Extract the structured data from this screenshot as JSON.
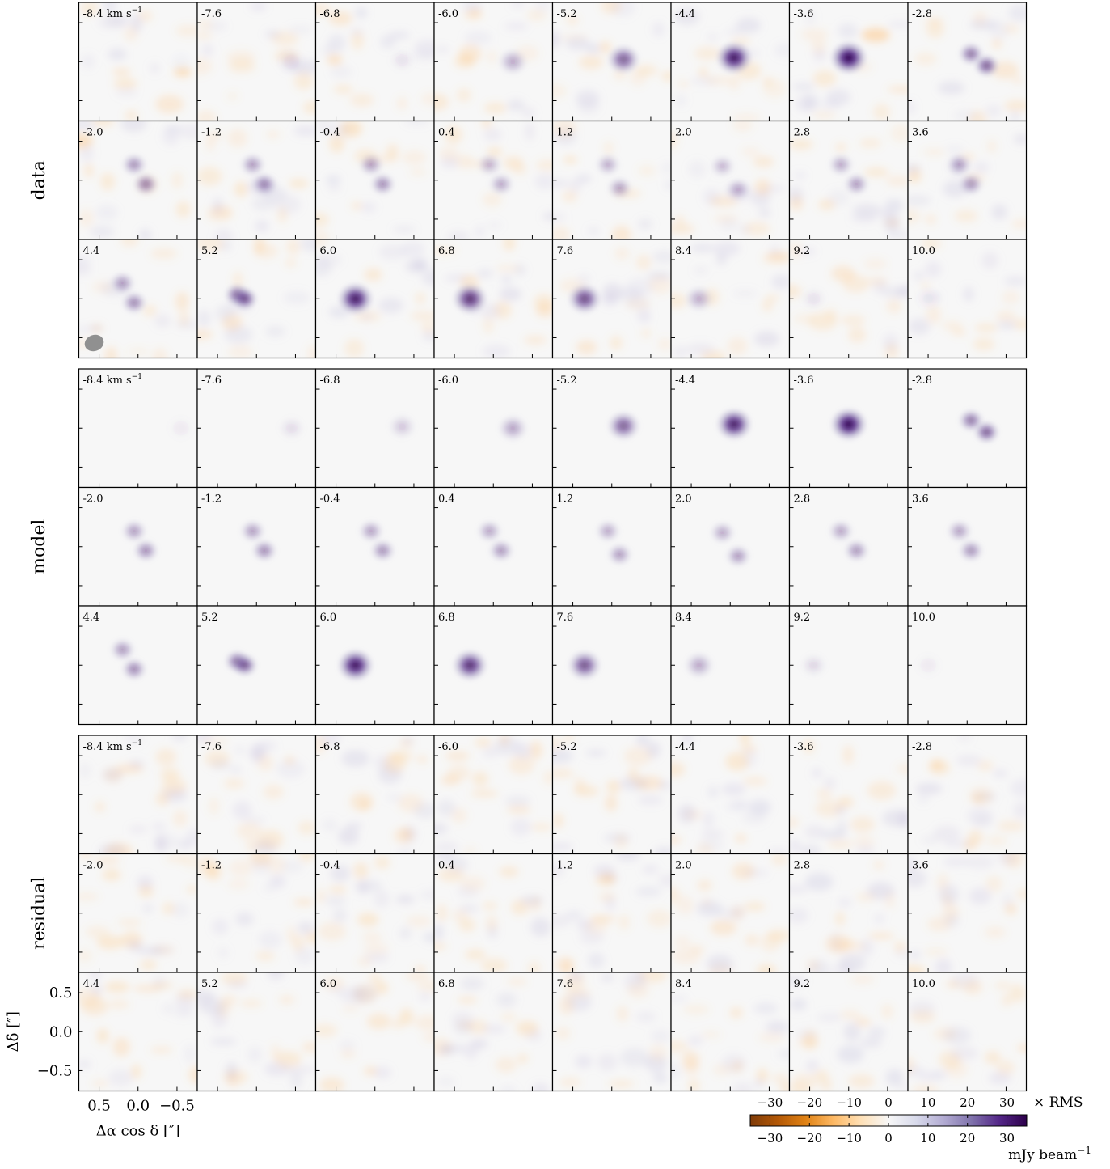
{
  "chart_data": {
    "type": "heatmap",
    "description_of_layout": "channel maps grid",
    "row_labels": [
      "data",
      "model",
      "residual"
    ],
    "columns_per_row": 8,
    "rows_per_block": 3,
    "velocity_unit_label": "km s",
    "velocity_unit_exp": "−1",
    "channels": [
      "-8.4",
      "-7.6",
      "-6.8",
      "-6.0",
      "-5.2",
      "-4.4",
      "-3.6",
      "-2.8",
      "-2.0",
      "-1.2",
      "-0.4",
      "0.4",
      "1.2",
      "2.0",
      "2.8",
      "3.6",
      "4.4",
      "5.2",
      "6.0",
      "6.8",
      "7.6",
      "8.4",
      "9.2",
      "10.0"
    ],
    "data_peak_intensity": [
      0.02,
      0.05,
      0.08,
      0.3,
      0.6,
      0.92,
      1.0,
      0.58,
      0.45,
      0.42,
      0.4,
      0.3,
      0.32,
      0.28,
      0.35,
      0.38,
      0.42,
      0.62,
      0.9,
      0.78,
      0.68,
      0.28,
      0.08,
      0.03
    ],
    "model_peak_intensity": [
      0.05,
      0.1,
      0.18,
      0.32,
      0.6,
      0.88,
      0.98,
      0.58,
      0.4,
      0.4,
      0.38,
      0.36,
      0.34,
      0.35,
      0.36,
      0.38,
      0.42,
      0.58,
      0.92,
      0.8,
      0.65,
      0.3,
      0.12,
      0.05
    ],
    "component_offsets_arcsec": [
      [
        [
          -0.55,
          0.0
        ]
      ],
      [
        [
          -0.45,
          0.0
        ]
      ],
      [
        [
          -0.35,
          0.02
        ]
      ],
      [
        [
          -0.25,
          0.0
        ]
      ],
      [
        [
          -0.15,
          0.03
        ]
      ],
      [
        [
          -0.05,
          0.05
        ]
      ],
      [
        [
          0.0,
          0.05
        ]
      ],
      [
        [
          -0.05,
          0.1
        ],
        [
          -0.25,
          -0.05
        ]
      ],
      [
        [
          0.05,
          0.2
        ],
        [
          -0.1,
          -0.05
        ]
      ],
      [
        [
          0.05,
          0.2
        ],
        [
          -0.1,
          -0.05
        ]
      ],
      [
        [
          0.05,
          0.2
        ],
        [
          -0.1,
          -0.05
        ]
      ],
      [
        [
          0.05,
          0.2
        ],
        [
          -0.1,
          -0.05
        ]
      ],
      [
        [
          0.05,
          0.2
        ],
        [
          -0.1,
          -0.1
        ]
      ],
      [
        [
          0.1,
          0.18
        ],
        [
          -0.1,
          -0.12
        ]
      ],
      [
        [
          0.1,
          0.2
        ],
        [
          -0.1,
          -0.05
        ]
      ],
      [
        [
          0.1,
          0.2
        ],
        [
          -0.05,
          -0.05
        ]
      ],
      [
        [
          0.2,
          0.2
        ],
        [
          0.05,
          -0.05
        ]
      ],
      [
        [
          0.25,
          0.05
        ],
        [
          0.15,
          0.0
        ]
      ],
      [
        [
          0.25,
          0.0
        ]
      ],
      [
        [
          0.3,
          0.0
        ]
      ],
      [
        [
          0.35,
          0.0
        ]
      ],
      [
        [
          0.4,
          0.0
        ]
      ],
      [
        [
          0.45,
          0.0
        ]
      ],
      [
        [
          0.5,
          0.0
        ]
      ]
    ],
    "y_axis_label": "Δδ [″]",
    "y_ticks": [
      "0.5",
      "0.0",
      "−0.5"
    ],
    "x_axis_label": "Δα cos δ [″]",
    "x_ticks": [
      "0.5",
      "0.0",
      "−0.5"
    ],
    "beam_shown_in": "data panel 4.4",
    "colorbar": {
      "top_unit": "× RMS",
      "top_ticks": [
        "−30",
        "−20",
        "−10",
        "0",
        "10",
        "20",
        "30"
      ],
      "bottom_ticks": [
        "−30",
        "−20",
        "−10",
        "0",
        "10",
        "20",
        "30"
      ],
      "bottom_unit": "mJy beam",
      "bottom_unit_exp": "−1",
      "range": [
        -35,
        35
      ],
      "colormap": "PuOr",
      "colors": [
        "#7f3b08",
        "#b35806",
        "#e08214",
        "#fdb863",
        "#fee0b6",
        "#f7f7f7",
        "#d8daeb",
        "#b2abd2",
        "#8073ac",
        "#542788",
        "#2d004b"
      ]
    }
  }
}
